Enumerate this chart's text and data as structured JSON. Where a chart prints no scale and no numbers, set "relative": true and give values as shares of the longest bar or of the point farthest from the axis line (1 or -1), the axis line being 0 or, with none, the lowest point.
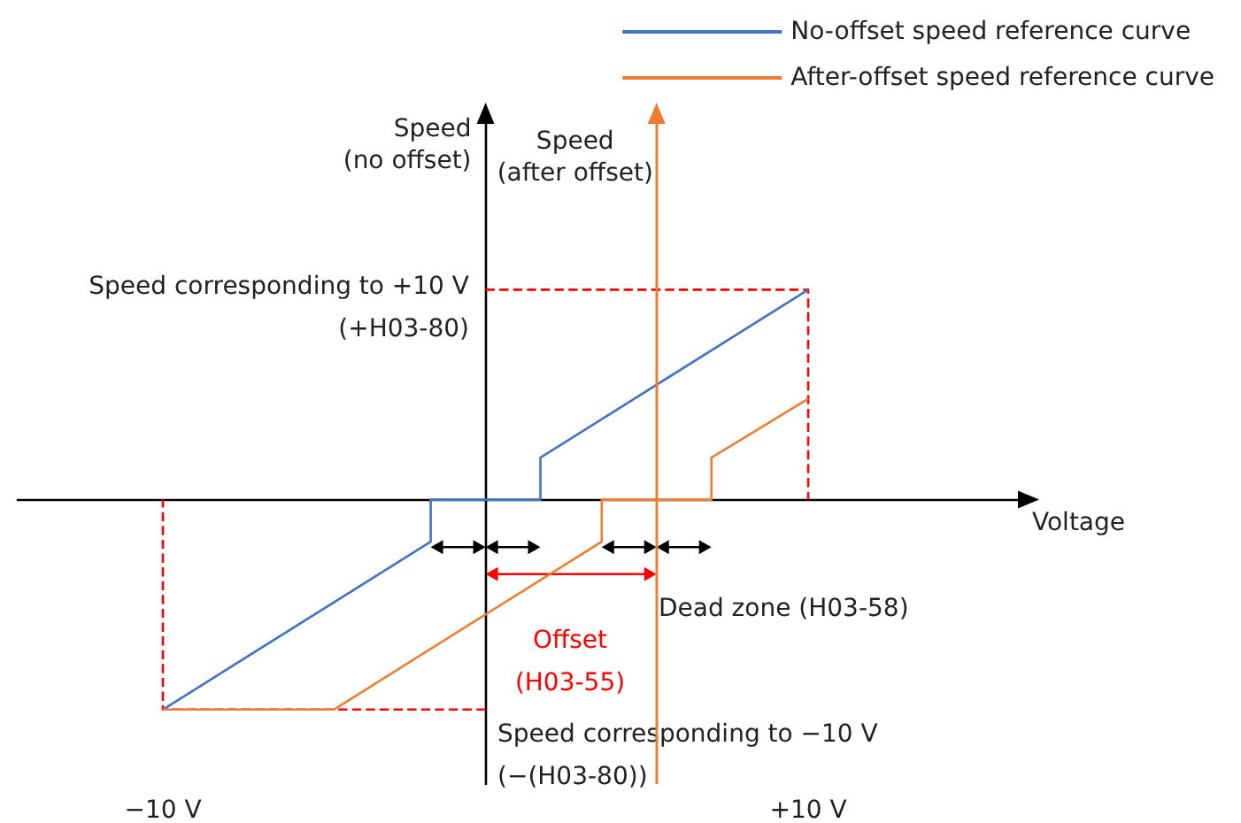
{
  "chart_data": {
    "type": "line",
    "relative": true,
    "xlabel": "Voltage",
    "ylabel": "Speed\n(no offset)",
    "xlim": [
      -14.5,
      16.5
    ],
    "xticks": [
      {
        "value": -10,
        "label": "−10 V"
      },
      {
        "value": 10,
        "label": "+10 V"
      }
    ],
    "series": [
      {
        "color": "#ff0000",
        "line_style": "dashed",
        "x": [
          0,
          10,
          10
        ],
        "values": [
          1,
          1,
          0
        ]
      },
      {
        "color": "#ff0000",
        "line_style": "dashed",
        "x": [
          0,
          -10,
          -10
        ],
        "values": [
          -1,
          -1,
          0
        ]
      },
      {
        "name": "No-offset speed reference curve",
        "color": "#4472c4",
        "x": [
          -10,
          -1.7,
          -1.7,
          1.7,
          1.7,
          10
        ],
        "values": [
          -1,
          -0.2,
          0,
          0,
          0.2,
          1
        ]
      },
      {
        "name": "After-offset speed reference curve",
        "color": "#ed7d31",
        "x": [
          -10,
          -4.7,
          3.6,
          3.6,
          7,
          7,
          10
        ],
        "values": [
          -1,
          -1,
          -0.2,
          0,
          0,
          0.2,
          0.48
        ]
      }
    ],
    "ref_lines": [
      {
        "axis": "x",
        "value": 5.3,
        "label": "Speed\n(after offset)",
        "color": "#ed7d31"
      }
    ],
    "annotations": [
      "Speed corresponding to +10 V\n(+H03-80)",
      "Speed corresponding to −10 V\n(−(H03-80))",
      "Dead zone (H03-58)",
      "Offset\n(H03-55)"
    ],
    "legend": "top right",
    "grid": false,
    "marker": "none"
  }
}
